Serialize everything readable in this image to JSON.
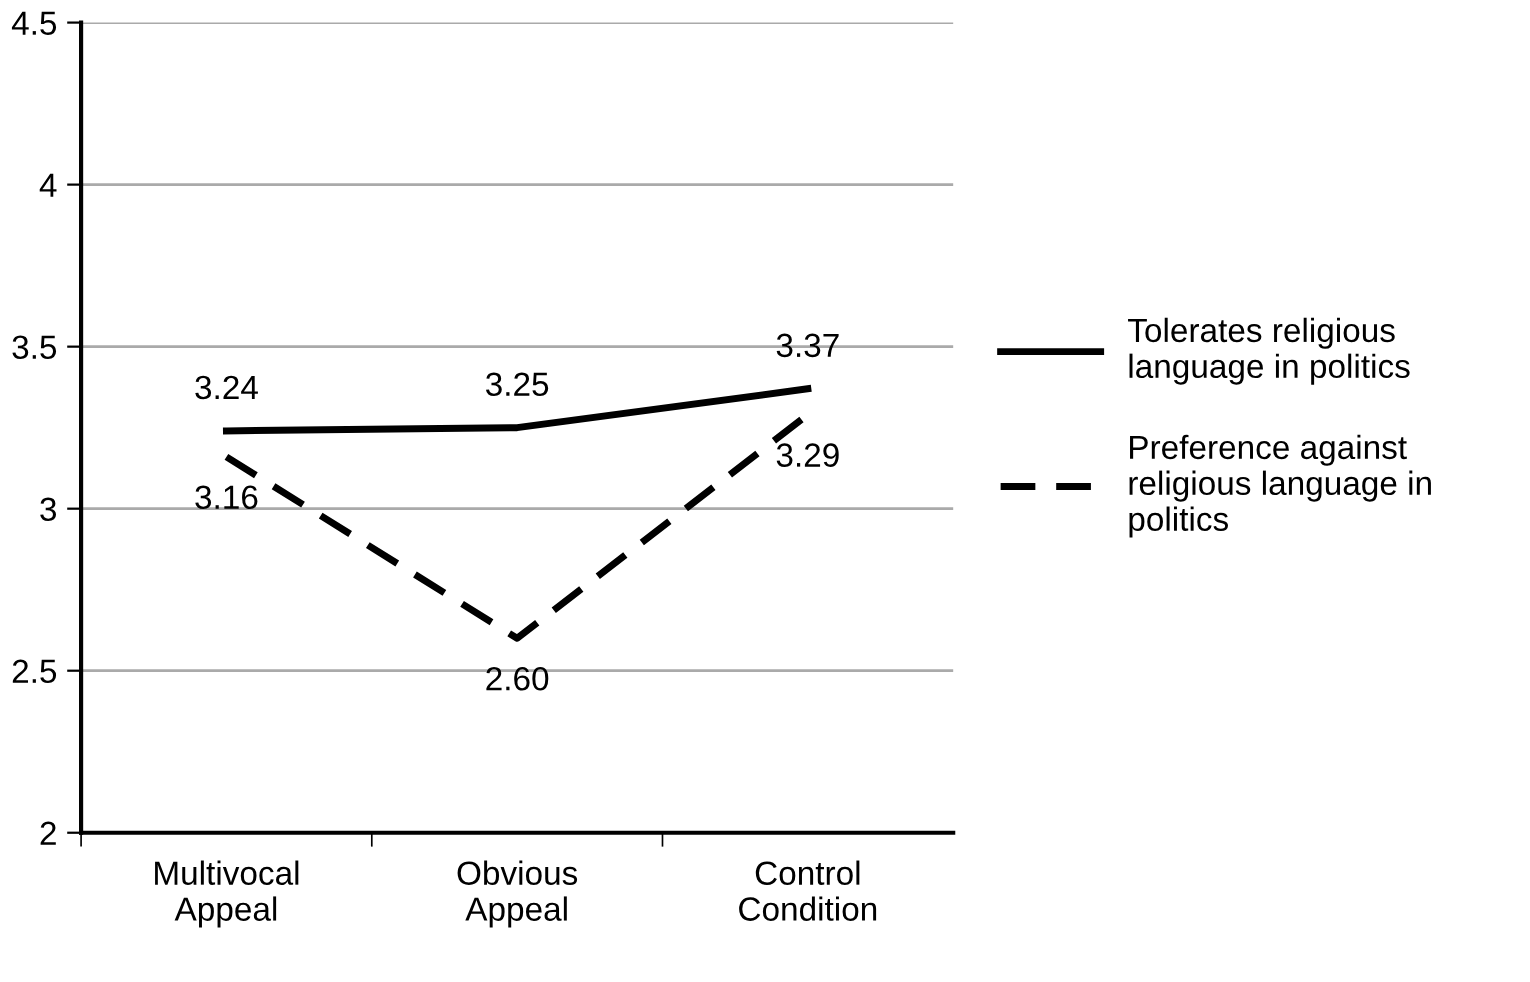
{
  "chart_data": {
    "type": "line",
    "categories": [
      "Multivocal\nAppeal",
      "Obvious\nAppeal",
      "Control\nCondition"
    ],
    "series": [
      {
        "name": "Tolerates religious\nlanguage in politics",
        "color": "#000000",
        "line_style": "solid",
        "values": [
          3.24,
          3.25,
          3.37
        ],
        "value_labels": [
          "3.24",
          "3.25",
          "3.37"
        ]
      },
      {
        "name": "Preference against\nreligious language in\npolitics",
        "color": "#000000",
        "line_style": "dashed",
        "values": [
          3.16,
          2.6,
          3.29
        ],
        "value_labels": [
          "3.16",
          "2.60",
          "3.29"
        ]
      }
    ],
    "ylim": [
      2,
      4.5
    ],
    "yticks": [
      2,
      2.5,
      3,
      3.5,
      4,
      4.5
    ],
    "grid": "y",
    "legend": "right",
    "marker": "none"
  }
}
